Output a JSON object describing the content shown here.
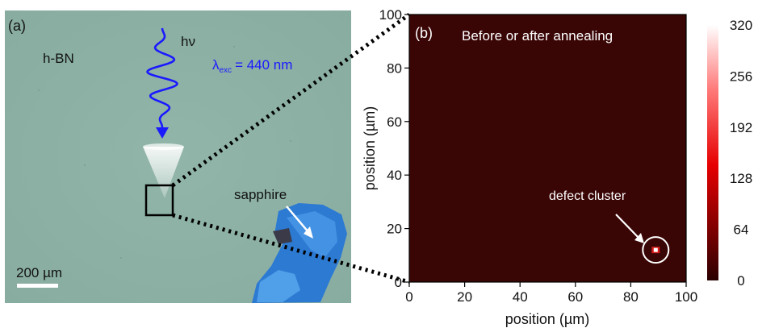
{
  "panel_a": {
    "label": "(a)",
    "material": "h-BN",
    "photon": "hν",
    "excitation": {
      "symbol": "λ",
      "subscript": "exc",
      "value": "= 440 nm"
    },
    "sapphire": "sapphire",
    "scalebar": "200 µm"
  },
  "panel_b": {
    "label": "(b)",
    "title": "Before or after annealing",
    "annotation": "defect cluster",
    "xlabel": "position (µm)",
    "ylabel": "position (µm)"
  },
  "chart_data": {
    "type": "heatmap",
    "title": "Before or after annealing",
    "xlabel": "position (µm)",
    "ylabel": "position (µm)",
    "xlim": [
      0,
      100
    ],
    "ylim": [
      0,
      100
    ],
    "x_ticks": [
      0,
      20,
      40,
      60,
      80,
      100
    ],
    "y_ticks": [
      0,
      20,
      40,
      60,
      80,
      100
    ],
    "colorbar": {
      "min": 0,
      "max": 320,
      "ticks": [
        0,
        64,
        128,
        192,
        256,
        320
      ]
    },
    "background_value": 25,
    "hotspots": [
      {
        "x": 89,
        "y": 12,
        "value": 320
      }
    ],
    "annotations": [
      {
        "text": "defect cluster",
        "x": 89,
        "y": 12
      }
    ]
  },
  "colors": {
    "microscope_bg": "#8fb3a6",
    "beam_wave": "#1a1aff",
    "excitation_text": "#1a1aff",
    "sapphire_blue": "#2f7fd6",
    "heatmap_low": "#3a0505",
    "heatmap_high": "#ffffff"
  }
}
